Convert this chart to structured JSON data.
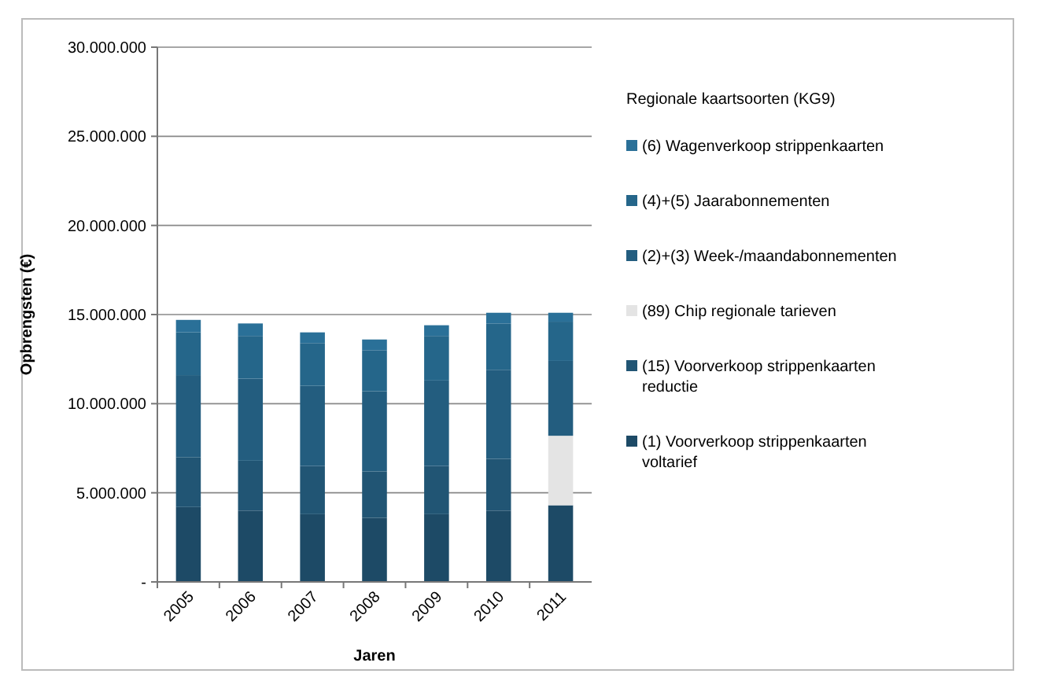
{
  "chart_data": {
    "type": "bar",
    "stacked": true,
    "xlabel": "Jaren",
    "ylabel": "Opbrengsten (€)",
    "legend_title": "Regionale kaartsoorten (KG9)",
    "legend": "right",
    "grid": "y",
    "categories": [
      "2005",
      "2006",
      "2007",
      "2008",
      "2009",
      "2010",
      "2011"
    ],
    "ylim": [
      0,
      30000000
    ],
    "yticks": [
      {
        "value": 0,
        "label": "-"
      },
      {
        "value": 5000000,
        "label": "5.000.000"
      },
      {
        "value": 10000000,
        "label": "10.000.000"
      },
      {
        "value": 15000000,
        "label": "15.000.000"
      },
      {
        "value": 20000000,
        "label": "20.000.000"
      },
      {
        "value": 25000000,
        "label": "25.000.000"
      },
      {
        "value": 30000000,
        "label": "30.000.000"
      }
    ],
    "series": [
      {
        "name": "(1) Voorverkoop strippenkaarten voltarief",
        "color": "#1d4a66",
        "values": [
          4200000,
          4000000,
          3800000,
          3600000,
          3800000,
          4000000,
          4300000
        ]
      },
      {
        "name": "(15) Voorverkoop strippenkaarten reductie",
        "color": "#215574",
        "values": [
          2800000,
          2800000,
          2700000,
          2600000,
          2700000,
          2900000,
          0
        ]
      },
      {
        "name": "(89) Chip regionale tarieven",
        "color": "#e4e4e4",
        "values": [
          0,
          0,
          0,
          0,
          0,
          0,
          3900000
        ]
      },
      {
        "name": "(2)+(3) Week-/maandabonnementen",
        "color": "#235d7f",
        "values": [
          4600000,
          4600000,
          4500000,
          4500000,
          4800000,
          5000000,
          4200000
        ]
      },
      {
        "name": "(4)+(5) Jaarabonnementen",
        "color": "#25668a",
        "values": [
          2400000,
          2400000,
          2400000,
          2300000,
          2500000,
          2600000,
          2200000
        ]
      },
      {
        "name": "(6) Wagenverkoop strippenkaarten",
        "color": "#2a7098",
        "values": [
          700000,
          700000,
          600000,
          600000,
          600000,
          600000,
          500000
        ]
      }
    ]
  }
}
